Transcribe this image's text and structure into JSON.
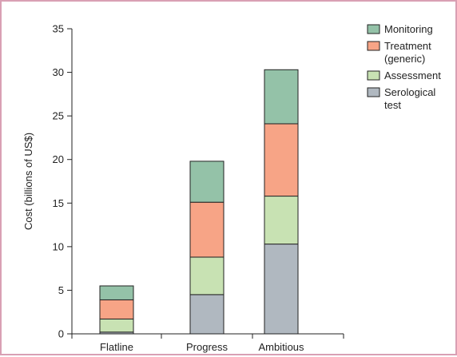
{
  "chart_data": {
    "type": "bar",
    "stacked": true,
    "categories": [
      "Flatline",
      "Progress",
      "Ambitious"
    ],
    "ylabel": "Cost (billions of US$)",
    "ylim": [
      0,
      35
    ],
    "yticks": [
      0,
      5,
      10,
      15,
      20,
      25,
      30,
      35
    ],
    "legend_position": "top-right",
    "series": [
      {
        "name": "Serological test",
        "legend_lines": [
          "Serological",
          "test"
        ],
        "color": "#b0b8c0",
        "values": [
          0.2,
          4.5,
          10.3
        ]
      },
      {
        "name": "Assessment",
        "legend_lines": [
          "Assessment"
        ],
        "color": "#c8e2b3",
        "values": [
          1.5,
          4.3,
          5.5
        ]
      },
      {
        "name": "Treatment (generic)",
        "legend_lines": [
          "Treatment",
          "(generic)"
        ],
        "color": "#f7a486",
        "values": [
          2.2,
          6.3,
          8.3
        ]
      },
      {
        "name": "Monitoring",
        "legend_lines": [
          "Monitoring"
        ],
        "color": "#94c2a8",
        "values": [
          1.6,
          4.7,
          6.2
        ]
      }
    ],
    "legend_order": [
      3,
      2,
      1,
      0
    ]
  }
}
